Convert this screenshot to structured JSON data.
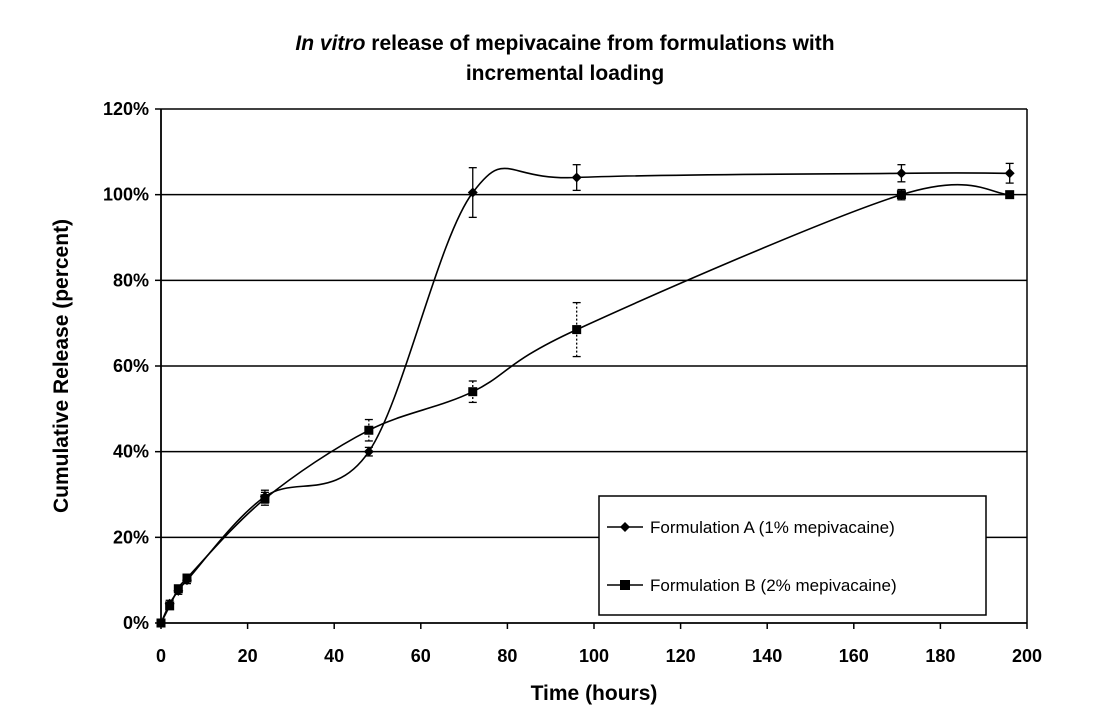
{
  "chart_data": {
    "type": "line",
    "title_italic": "In vitro",
    "title_rest": " release of mepivacaine from formulations with",
    "title_line2": "incremental loading",
    "xlabel": "Time (hours)",
    "ylabel": "Cumulative Release (percent)",
    "xlim": [
      0,
      200
    ],
    "ylim": [
      0,
      120
    ],
    "x_ticks": [
      "0",
      "20",
      "40",
      "60",
      "80",
      "100",
      "120",
      "140",
      "160",
      "180",
      "200"
    ],
    "y_ticks": [
      "0%",
      "20%",
      "40%",
      "60%",
      "80%",
      "100%",
      "120%"
    ],
    "grid": "horizontal",
    "legend_position": "bottom-right",
    "series": [
      {
        "name": "Formulation A (1% mepivacaine)",
        "marker": "diamond",
        "x": [
          0,
          2,
          4,
          6,
          24,
          48,
          72,
          96,
          171,
          196
        ],
        "y": [
          0,
          4.5,
          7.5,
          10,
          29.5,
          40,
          100.5,
          104,
          105,
          105
        ],
        "err": [
          0.5,
          0.8,
          0.8,
          0.8,
          1.5,
          1.0,
          5.8,
          3.0,
          2.0,
          2.3
        ]
      },
      {
        "name": "Formulation B (2% mepivacaine)",
        "marker": "square",
        "x": [
          0,
          2,
          4,
          6,
          24,
          48,
          72,
          96,
          171,
          196
        ],
        "y": [
          0,
          4,
          8,
          10.5,
          29,
          45,
          54,
          68.5,
          100,
          100
        ],
        "err": [
          0.5,
          0.8,
          0.8,
          0.8,
          1.5,
          2.5,
          2.5,
          6.3,
          1.2,
          0.8
        ]
      }
    ]
  }
}
